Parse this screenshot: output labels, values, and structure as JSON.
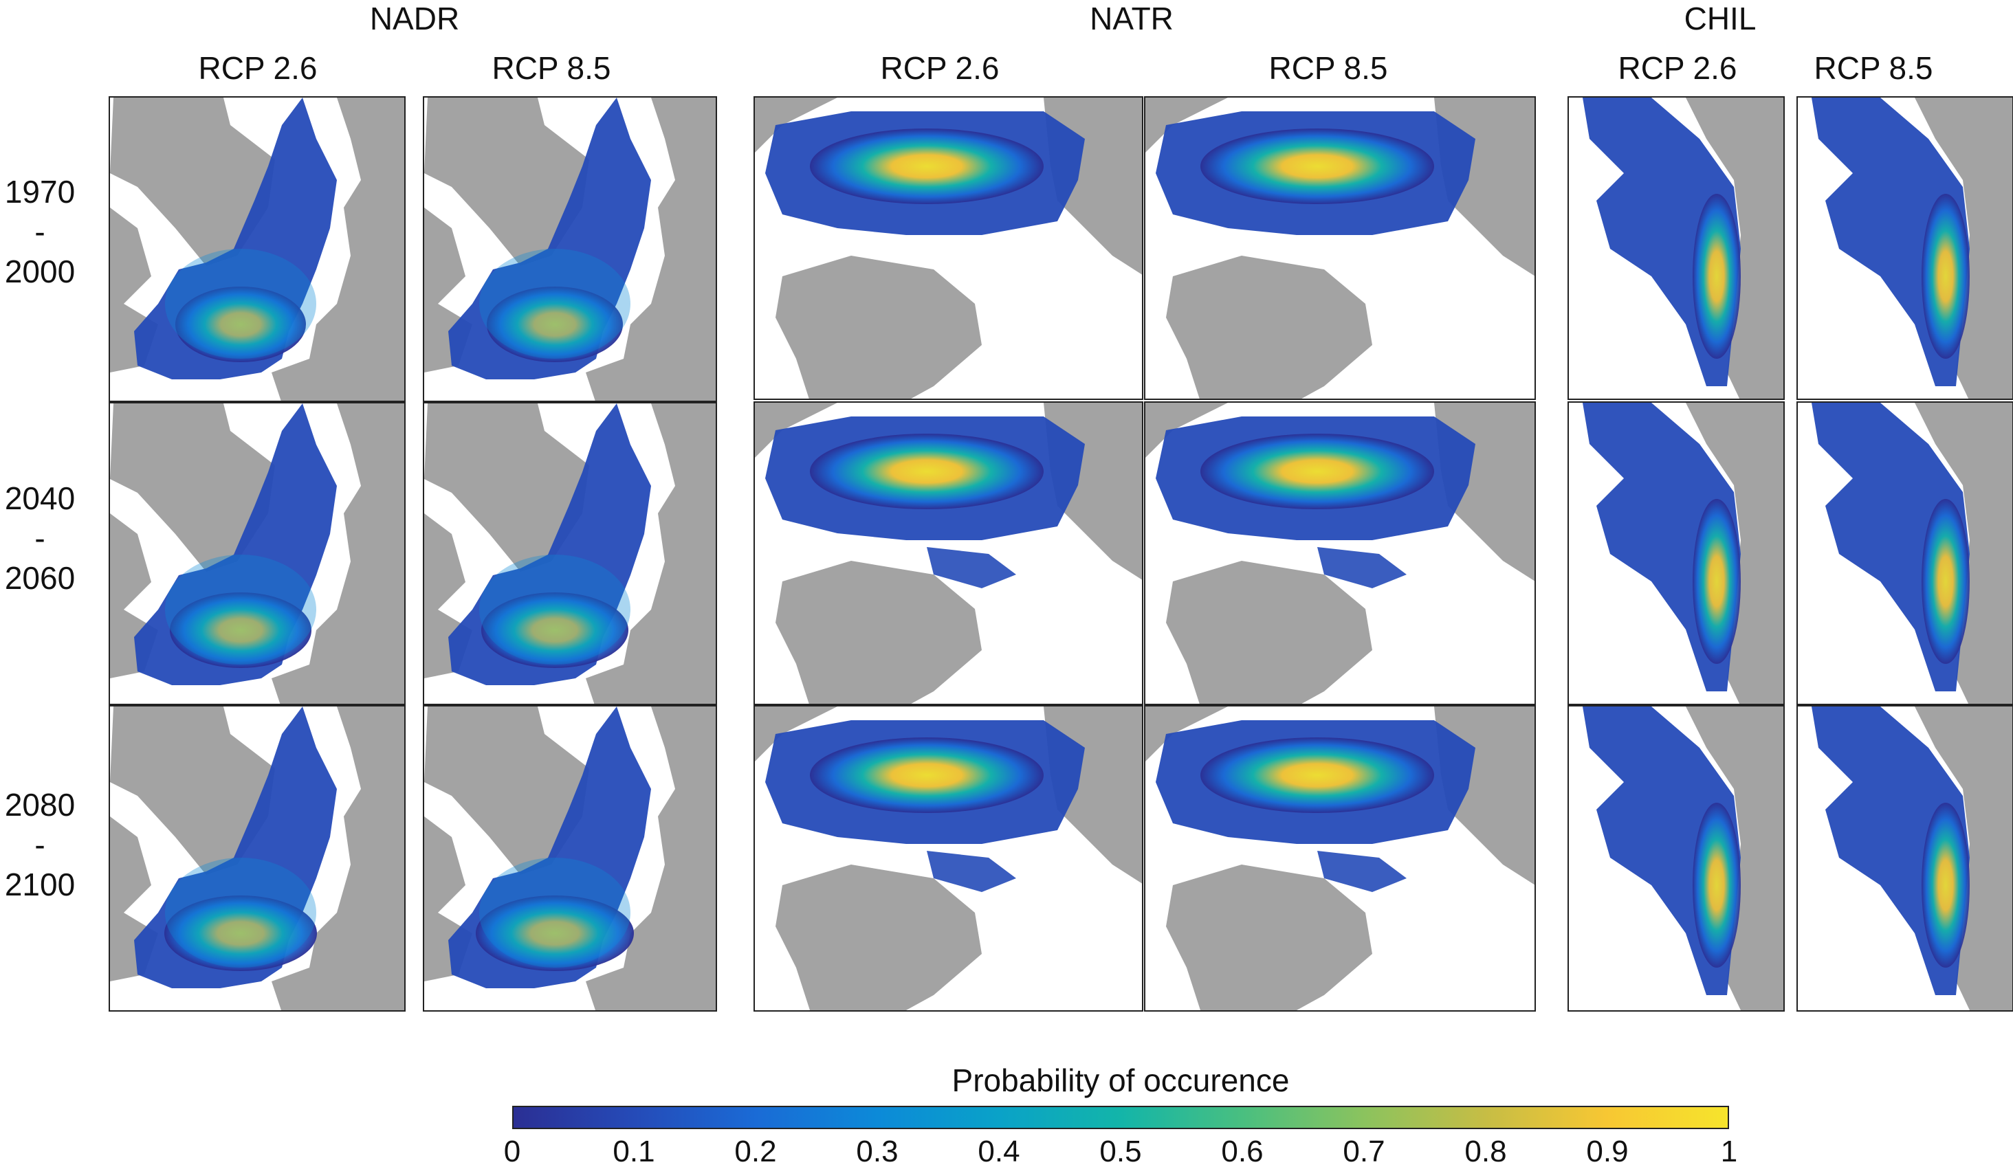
{
  "regions": [
    {
      "name": "NADR",
      "scenarios": [
        "RCP 2.6",
        "RCP 8.5"
      ]
    },
    {
      "name": "NATR",
      "scenarios": [
        "RCP 2.6",
        "RCP 8.5"
      ]
    },
    {
      "name": "CHIL",
      "scenarios": [
        "RCP 2.6",
        "RCP 8.5"
      ]
    }
  ],
  "periods": [
    {
      "start": "1970",
      "sep": "-",
      "end": "2000"
    },
    {
      "start": "2040",
      "sep": "-",
      "end": "2060"
    },
    {
      "start": "2080",
      "sep": "-",
      "end": "2100"
    }
  ],
  "colorbar": {
    "title": "Probability of occurence",
    "ticks": [
      "0",
      "0.1",
      "0.2",
      "0.3",
      "0.4",
      "0.5",
      "0.6",
      "0.7",
      "0.8",
      "0.9",
      "1"
    ],
    "colors": [
      "#2b2f94",
      "#254bb8",
      "#1a6bd6",
      "#0c8ad8",
      "#0aa2c8",
      "#13b5a9",
      "#49bf80",
      "#8bc35e",
      "#c6bd45",
      "#f7c733",
      "#f6e42c"
    ]
  },
  "colors": {
    "land": "#a3a3a3",
    "ocean": "#ffffff",
    "frame": "#222222"
  }
}
